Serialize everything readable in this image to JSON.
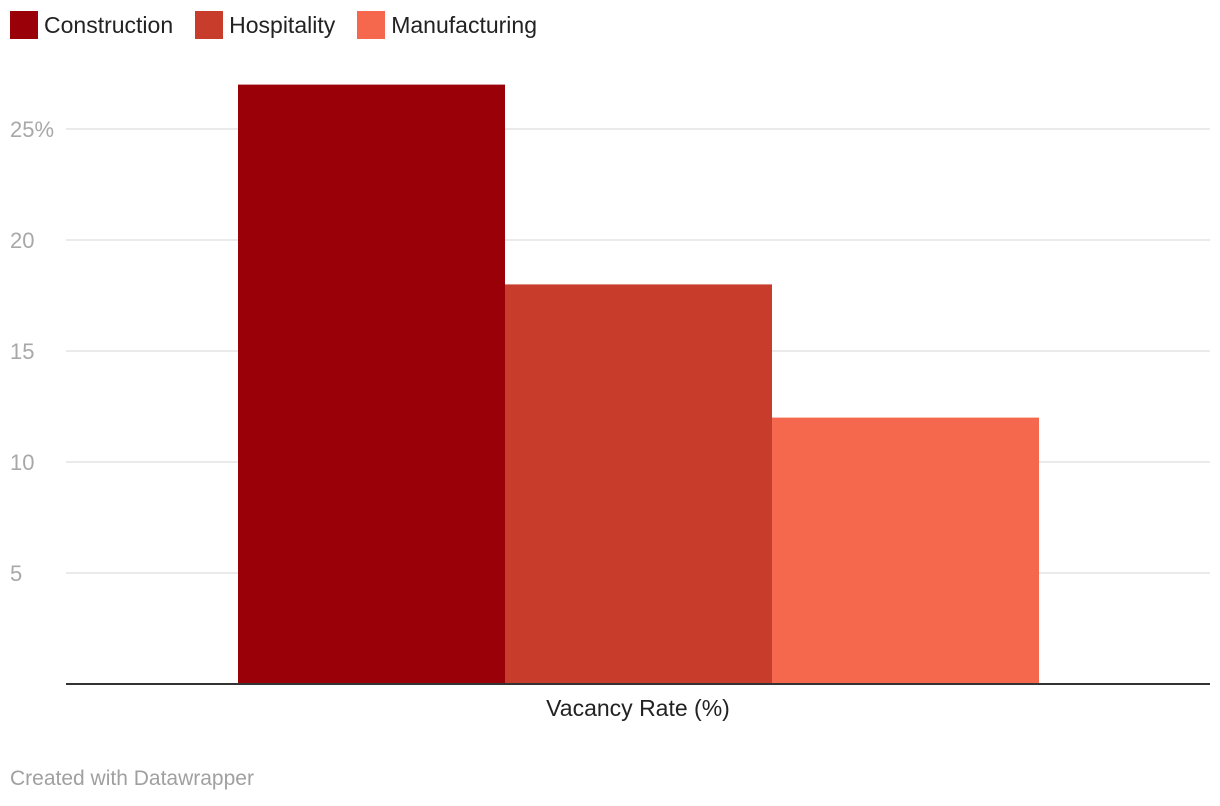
{
  "chart_data": {
    "type": "bar",
    "categories": [
      "Vacancy Rate (%)"
    ],
    "series": [
      {
        "name": "Construction",
        "values": [
          27
        ],
        "color": "#990008"
      },
      {
        "name": "Hospitality",
        "values": [
          18
        ],
        "color": "#c83c2b"
      },
      {
        "name": "Manufacturing",
        "values": [
          12
        ],
        "color": "#f6684d"
      }
    ],
    "ylim": [
      0,
      27
    ],
    "yticks": [
      5,
      10,
      15,
      20,
      25
    ],
    "ytick_labels": [
      "5",
      "10",
      "15",
      "20",
      "25%"
    ],
    "xlabel": "Vacancy Rate (%)",
    "legend_position": "top-left",
    "grid": true
  },
  "footer": {
    "credit": "Created with Datawrapper"
  }
}
